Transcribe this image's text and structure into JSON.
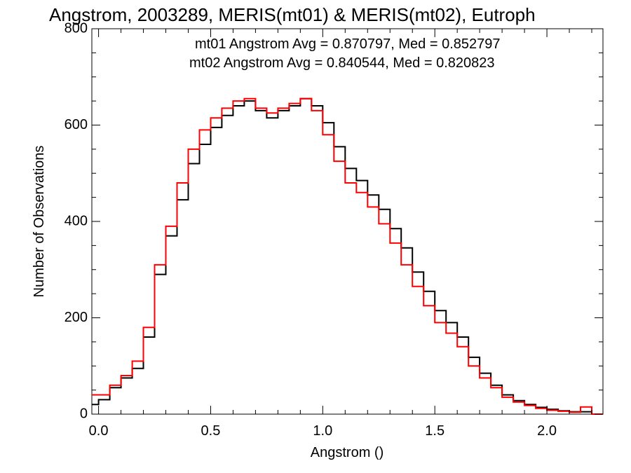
{
  "chart_data": {
    "type": "line",
    "title": "Angstrom, 2003289, MERIS(mt01) & MERIS(mt02), Eutroph",
    "xlabel": "Angstrom ()",
    "ylabel": "Number of Observations",
    "xlim": [
      -0.03,
      2.25
    ],
    "ylim": [
      0,
      800
    ],
    "xticks": [
      "0.0",
      "0.5",
      "1.0",
      "1.5",
      "2.0"
    ],
    "yticks": [
      "0",
      "200",
      "400",
      "600",
      "800"
    ],
    "annotations": [
      {
        "text": "mt01 Angstrom Avg = 0.870797, Med = 0.852797",
        "color": "#000000"
      },
      {
        "text": "mt02 Angstrom Avg = 0.840544, Med = 0.820823",
        "color": "#ff0000"
      }
    ],
    "grid": false,
    "series": [
      {
        "color": "#000000",
        "x": [
          -0.05,
          0.0,
          0.05,
          0.1,
          0.15,
          0.2,
          0.25,
          0.3,
          0.35,
          0.4,
          0.45,
          0.5,
          0.55,
          0.6,
          0.65,
          0.7,
          0.75,
          0.8,
          0.85,
          0.9,
          0.95,
          1.0,
          1.05,
          1.1,
          1.15,
          1.2,
          1.25,
          1.3,
          1.35,
          1.4,
          1.45,
          1.5,
          1.55,
          1.6,
          1.65,
          1.7,
          1.75,
          1.8,
          1.85,
          1.9,
          1.95,
          2.0,
          2.05,
          2.1,
          2.15,
          2.2,
          2.25
        ],
        "y": [
          20,
          30,
          55,
          75,
          95,
          160,
          290,
          370,
          445,
          520,
          560,
          595,
          620,
          640,
          650,
          630,
          615,
          630,
          640,
          655,
          640,
          605,
          555,
          510,
          485,
          455,
          425,
          385,
          345,
          295,
          255,
          215,
          190,
          160,
          118,
          85,
          60,
          40,
          28,
          20,
          14,
          10,
          7,
          5,
          5,
          0,
          0
        ]
      },
      {
        "color": "#ff0000",
        "x": [
          -0.05,
          0.0,
          0.05,
          0.1,
          0.15,
          0.2,
          0.25,
          0.3,
          0.35,
          0.4,
          0.45,
          0.5,
          0.55,
          0.6,
          0.65,
          0.7,
          0.75,
          0.8,
          0.85,
          0.9,
          0.95,
          1.0,
          1.05,
          1.1,
          1.15,
          1.2,
          1.25,
          1.3,
          1.35,
          1.4,
          1.45,
          1.5,
          1.55,
          1.6,
          1.65,
          1.7,
          1.75,
          1.8,
          1.85,
          1.9,
          1.95,
          2.0,
          2.05,
          2.1,
          2.15,
          2.2,
          2.25
        ],
        "y": [
          40,
          40,
          60,
          80,
          110,
          180,
          310,
          390,
          480,
          550,
          590,
          615,
          635,
          650,
          655,
          635,
          625,
          635,
          645,
          655,
          630,
          580,
          525,
          480,
          460,
          430,
          395,
          355,
          310,
          265,
          225,
          190,
          168,
          140,
          100,
          75,
          55,
          35,
          25,
          18,
          12,
          8,
          6,
          4,
          15,
          0,
          0
        ]
      }
    ]
  }
}
